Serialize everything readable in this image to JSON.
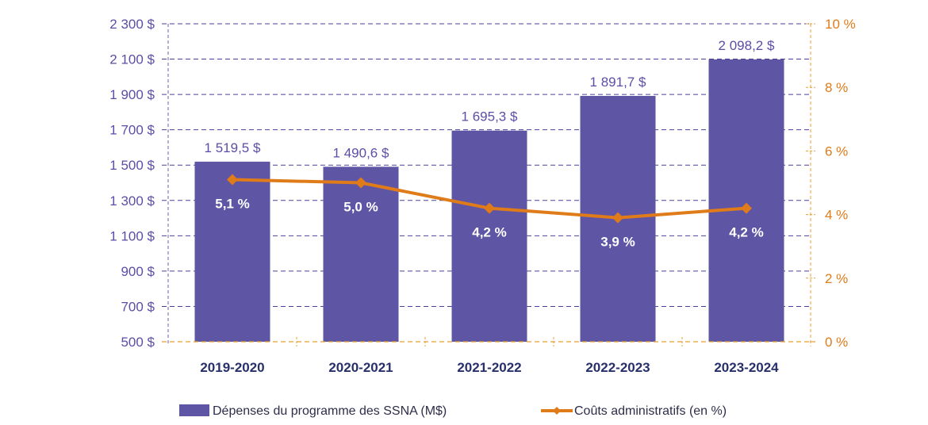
{
  "chart_data": {
    "type": "bar",
    "title": "",
    "xlabel": "",
    "ylabel": "",
    "categories": [
      "2019-2020",
      "2020-2021",
      "2021-2022",
      "2022-2023",
      "2023-2024"
    ],
    "series": [
      {
        "name": "Dépenses du programme des SSNA (M$)",
        "type": "bar",
        "axis": "left",
        "color": "#5f55a5",
        "values": [
          1519.5,
          1490.6,
          1695.3,
          1891.7,
          2098.2
        ],
        "labels": [
          "1 519,5 $",
          "1 490,6 $",
          "1 695,3 $",
          "1 891,7 $",
          "2 098,2 $"
        ]
      },
      {
        "name": "Coûts administratifs (en %)",
        "type": "line",
        "axis": "right",
        "color": "#e07b1a",
        "values": [
          5.1,
          5.0,
          4.2,
          3.9,
          4.2
        ],
        "labels": [
          "5,1 %",
          "5,0 %",
          "4,2 %",
          "3,9 %",
          "4,2 %"
        ]
      }
    ],
    "y_left": {
      "ylim": [
        500,
        2300
      ],
      "ticks": [
        500,
        700,
        900,
        1100,
        1300,
        1500,
        1700,
        1900,
        2100,
        2300
      ],
      "tick_labels": [
        "500 $",
        "700 $",
        "900 $",
        "1 100 $",
        "1 300 $",
        "1 500 $",
        "1 700 $",
        "1 900 $",
        "2 100 $",
        "2 300 $"
      ]
    },
    "y_right": {
      "ylim": [
        0,
        10
      ],
      "ticks": [
        0,
        2,
        4,
        6,
        8,
        10
      ],
      "tick_labels": [
        "0 %",
        "2 %",
        "4 %",
        "6 %",
        "8 %",
        "10 %"
      ]
    },
    "grid": true,
    "legend": "bottom"
  }
}
